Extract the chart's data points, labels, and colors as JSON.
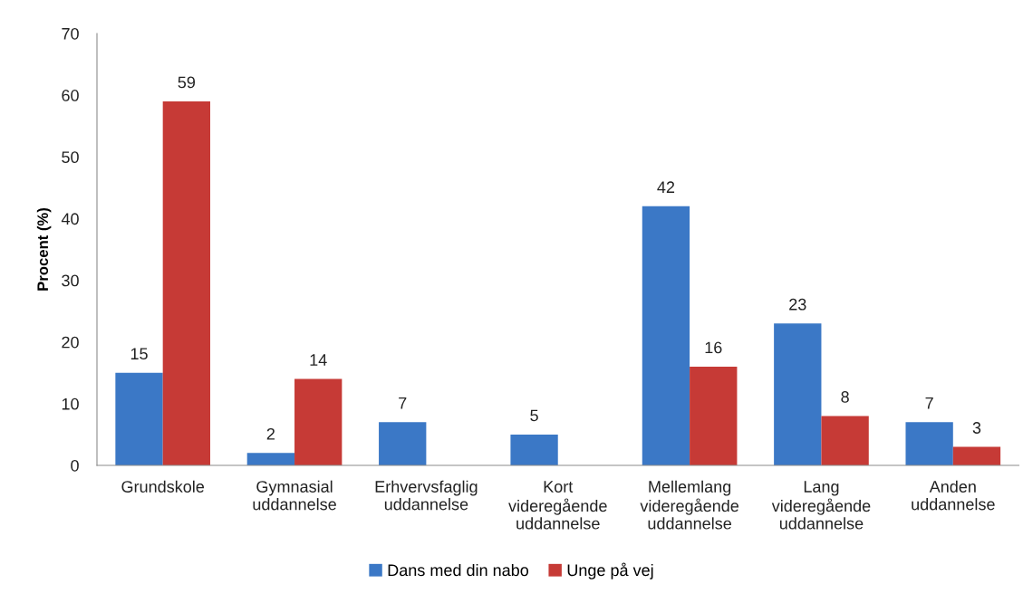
{
  "chart_data": {
    "type": "bar",
    "ylabel": "Procent (%)",
    "categories": [
      "Grundskole",
      "Gymnasial uddannelse",
      "Erhvervsfaglig uddannelse",
      "Kort videregående uddannelse",
      "Mellemlang videregående uddannelse",
      "Lang videregående uddannelse",
      "Anden uddannelse"
    ],
    "series": [
      {
        "name": "Dans med din nabo",
        "color": "#3b78c6",
        "values": [
          15,
          2,
          7,
          5,
          42,
          23,
          7
        ]
      },
      {
        "name": "Unge på vej",
        "color": "#c63a36",
        "values": [
          59,
          14,
          null,
          null,
          16,
          8,
          3
        ]
      }
    ],
    "ylim": [
      0,
      70
    ],
    "yticks": [
      0,
      10,
      20,
      30,
      40,
      50,
      60,
      70
    ],
    "data_labels": true,
    "grid": false,
    "legend": "bottom"
  }
}
